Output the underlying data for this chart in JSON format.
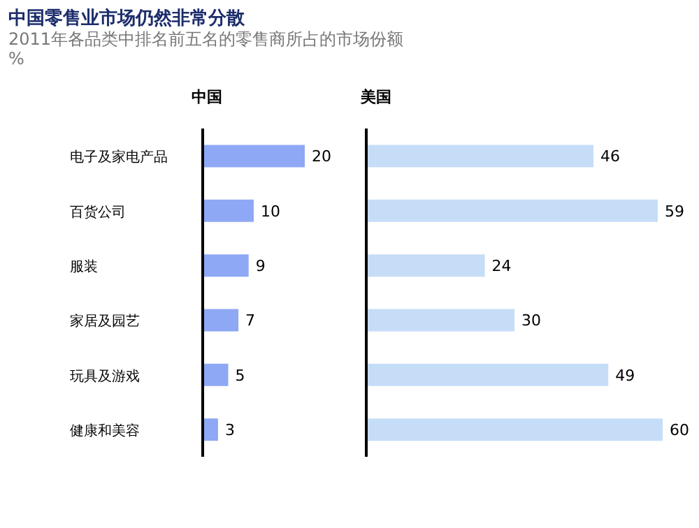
{
  "chart_data": [
    {
      "type": "bar",
      "orientation": "horizontal",
      "title": "中国零售业市场仍然非常分散",
      "subtitle": "2011年各品类中排名前五名的零售商所占的市场份额",
      "annotations": [
        "%"
      ],
      "categories": [
        "电子及家电产品",
        "百货公司",
        "服装",
        "家居及园艺",
        "玩具及游戏",
        "健康和美容"
      ],
      "series": [
        {
          "name": "中国",
          "color": "#8fa8f5",
          "values": [
            20,
            10,
            9,
            7,
            5,
            3
          ]
        }
      ],
      "data_labels": true,
      "legend": false,
      "grid": false
    },
    {
      "type": "bar",
      "orientation": "horizontal",
      "categories": [
        null,
        null,
        null,
        null,
        null,
        null
      ],
      "series": [
        {
          "name": "美国",
          "color": "#c6ddf8",
          "values": [
            46,
            59,
            24,
            30,
            49,
            60
          ]
        }
      ],
      "data_labels": true,
      "legend": false,
      "grid": false,
      "tick_labels": false
    }
  ]
}
